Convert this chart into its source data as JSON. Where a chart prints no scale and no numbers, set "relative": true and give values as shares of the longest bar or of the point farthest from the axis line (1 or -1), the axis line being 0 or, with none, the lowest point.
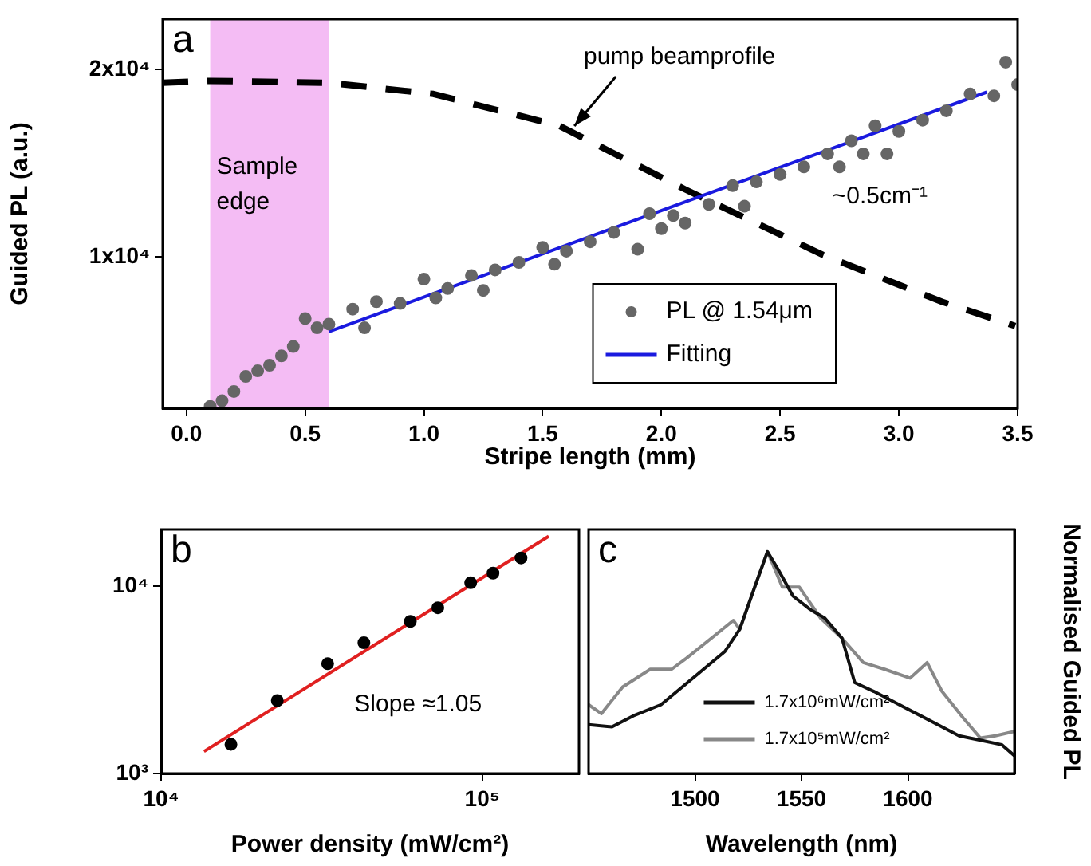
{
  "chart_data": [
    {
      "type": "scatter",
      "xlabel": "Stripe length (mm)",
      "ylabel": "Guided PL (a.u.)",
      "xlim": [
        -0.1,
        3.5
      ],
      "ylim": [
        1900,
        22700
      ],
      "xticks": [
        {
          "value": 0,
          "label": "0.0"
        },
        0.5,
        {
          "value": 1,
          "label": "1.0"
        },
        1.5,
        {
          "value": 2,
          "label": "2.0"
        },
        2.5,
        {
          "value": 3,
          "label": "3.0"
        },
        3.5
      ],
      "yticks": [
        {
          "value": 10000,
          "label": "1x10⁴"
        },
        {
          "value": 20000,
          "label": "2x10⁴"
        }
      ],
      "legend": "bottom right",
      "bands": [
        {
          "axis": "x",
          "from": 0.1,
          "to": 0.6,
          "label": "Sample edge",
          "color": "#e040e0"
        }
      ],
      "annotations": [
        "a",
        {
          "text": "pump beamprofile",
          "x": 1.62,
          "y": 16900
        },
        "~0.5cm⁻¹"
      ],
      "series": [
        {
          "name": "PL @ 1.54μm",
          "type": "scatter",
          "color": "#666666",
          "x": [
            0.1,
            0.15,
            0.2,
            0.25,
            0.3,
            0.35,
            0.4,
            0.45,
            0.5,
            0.55,
            0.6,
            0.7,
            0.75,
            0.8,
            0.9,
            1.0,
            1.05,
            1.1,
            1.2,
            1.25,
            1.3,
            1.4,
            1.5,
            1.55,
            1.6,
            1.7,
            1.8,
            1.9,
            1.95,
            2.0,
            2.05,
            2.1,
            2.2,
            2.3,
            2.35,
            2.4,
            2.5,
            2.6,
            2.7,
            2.75,
            2.8,
            2.85,
            2.9,
            2.95,
            3.0,
            3.1,
            3.2,
            3.3,
            3.4,
            3.45,
            3.5
          ],
          "values": [
            2000,
            2300,
            2800,
            3600,
            3900,
            4200,
            4700,
            5200,
            6700,
            6200,
            6400,
            7200,
            6200,
            7600,
            7500,
            8800,
            7800,
            8300,
            9000,
            8200,
            9300,
            9700,
            10500,
            9600,
            10300,
            10800,
            11300,
            10400,
            12300,
            11500,
            12200,
            11800,
            12800,
            13800,
            12700,
            14000,
            14400,
            14800,
            15500,
            14800,
            16200,
            15500,
            17000,
            15500,
            16700,
            17300,
            17800,
            18700,
            18600,
            20400,
            19200
          ]
        },
        {
          "name": "Fitting",
          "type": "line",
          "color": "#1a1adf",
          "x": [
            0.6,
            3.37
          ],
          "values": [
            6000,
            18800
          ]
        },
        {
          "type": "line",
          "color": "#000000",
          "line_style": "dashed",
          "x": [
            -0.1,
            0.1,
            0.6,
            1.04,
            1.57,
            2.1,
            2.68,
            3.18,
            3.49
          ],
          "values": [
            19300,
            19400,
            19300,
            18700,
            17000,
            13600,
            10100,
            7600,
            6300
          ]
        }
      ]
    },
    {
      "type": "scatter",
      "xlabel": "Power density (mW/cm²)",
      "log": "xy",
      "xlim": [
        10000,
        200000
      ],
      "ylim": [
        1000,
        20000
      ],
      "xticks": [
        {
          "value": 10000,
          "label": "10⁴"
        },
        {
          "value": 100000,
          "label": "10⁵"
        }
      ],
      "yticks": [
        {
          "value": 1000,
          "label": "10³"
        },
        {
          "value": 10000,
          "label": "10⁴"
        }
      ],
      "annotations": [
        "b",
        "Slope ≈1.05"
      ],
      "series": [
        {
          "type": "scatter",
          "color": "#000000",
          "x": [
            16500,
            23000,
            33000,
            42800,
            59700,
            72700,
            92000,
            108000,
            132000
          ],
          "values": [
            1430,
            2450,
            3850,
            4980,
            6470,
            7650,
            10400,
            11700,
            14100
          ]
        },
        {
          "type": "line",
          "color": "#e02020",
          "x": [
            13600,
            161000
          ],
          "values": [
            1310,
            18400
          ]
        }
      ]
    },
    {
      "type": "line",
      "xlabel": "Wavelength (nm)",
      "ylabel": "Normalised Guided PL",
      "relative": true,
      "tick_labels": "x",
      "xlim": [
        1450,
        1650
      ],
      "xticks": [
        1500,
        1550,
        1600
      ],
      "legend": "bottom",
      "annotations": [
        "c"
      ],
      "series": [
        {
          "name": "1.7x10⁶mW/cm²",
          "color": "#111111",
          "x": [
            1450,
            1461,
            1471,
            1484,
            1494,
            1504,
            1514,
            1521,
            1528,
            1534,
            1539,
            1546,
            1554,
            1561,
            1569,
            1575,
            1584,
            1594,
            1604,
            1614,
            1624,
            1634,
            1644,
            1650
          ],
          "values": [
            0.22,
            0.21,
            0.26,
            0.31,
            0.39,
            0.47,
            0.55,
            0.65,
            0.84,
            1.0,
            0.92,
            0.8,
            0.74,
            0.7,
            0.61,
            0.41,
            0.37,
            0.32,
            0.27,
            0.22,
            0.17,
            0.15,
            0.13,
            0.08
          ]
        },
        {
          "name": "1.7x10⁵mW/cm²",
          "color": "#888888",
          "x": [
            1450,
            1456,
            1466,
            1479,
            1489,
            1496,
            1509,
            1518,
            1521,
            1528,
            1534,
            1541,
            1549,
            1559,
            1569,
            1579,
            1589,
            1601,
            1609,
            1616,
            1626,
            1634,
            1641,
            1650
          ],
          "values": [
            0.31,
            0.27,
            0.39,
            0.47,
            0.47,
            0.52,
            0.62,
            0.69,
            0.65,
            0.84,
            1.0,
            0.84,
            0.84,
            0.7,
            0.61,
            0.5,
            0.47,
            0.43,
            0.5,
            0.37,
            0.25,
            0.16,
            0.17,
            0.19
          ]
        }
      ]
    }
  ]
}
